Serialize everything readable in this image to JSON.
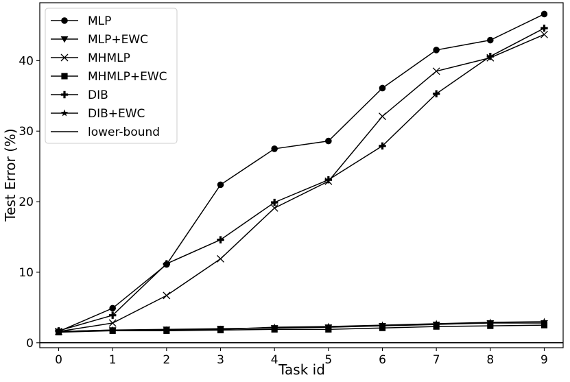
{
  "chart_data": {
    "type": "line",
    "xlabel": "Task id",
    "ylabel": "Test Error (%)",
    "x": [
      0,
      1,
      2,
      3,
      4,
      5,
      6,
      7,
      8,
      9
    ],
    "xlim": [
      -0.35,
      9.35
    ],
    "ylim": [
      -0.7,
      48.2
    ],
    "xticks": [
      0,
      1,
      2,
      3,
      4,
      5,
      6,
      7,
      8,
      9
    ],
    "yticks": [
      0,
      10,
      20,
      30,
      40
    ],
    "grid": false,
    "legend": "upper-left",
    "series": [
      {
        "name": "MLP",
        "marker": "circle",
        "color": "#000000",
        "values": [
          1.6,
          4.9,
          11.1,
          22.4,
          27.5,
          28.6,
          36.1,
          41.5,
          42.9,
          46.6
        ]
      },
      {
        "name": "MLP+EWC",
        "marker": "triangle-down",
        "color": "#000000",
        "values": [
          1.6,
          1.8,
          1.9,
          2.0,
          2.1,
          2.2,
          2.4,
          2.6,
          2.8,
          2.8
        ]
      },
      {
        "name": "MHMLP",
        "marker": "x",
        "color": "#000000",
        "values": [
          1.6,
          2.8,
          6.7,
          11.9,
          19.1,
          22.9,
          32.1,
          38.5,
          40.4,
          43.7
        ]
      },
      {
        "name": "MHMLP+EWC",
        "marker": "square",
        "color": "#000000",
        "values": [
          1.5,
          1.7,
          1.7,
          1.8,
          1.9,
          1.9,
          2.1,
          2.3,
          2.4,
          2.5
        ]
      },
      {
        "name": "DIB",
        "marker": "plus",
        "color": "#000000",
        "values": [
          1.7,
          3.9,
          11.2,
          14.6,
          19.9,
          23.1,
          27.9,
          35.3,
          40.6,
          44.6
        ]
      },
      {
        "name": "DIB+EWC",
        "marker": "star",
        "color": "#000000",
        "values": [
          1.6,
          1.8,
          1.8,
          1.9,
          2.2,
          2.3,
          2.5,
          2.7,
          2.9,
          3.0
        ]
      },
      {
        "name": "lower-bound",
        "marker": "none",
        "color": "#000000",
        "values": [
          0,
          0,
          0,
          0,
          0,
          0,
          0,
          0,
          0,
          0
        ]
      }
    ]
  }
}
